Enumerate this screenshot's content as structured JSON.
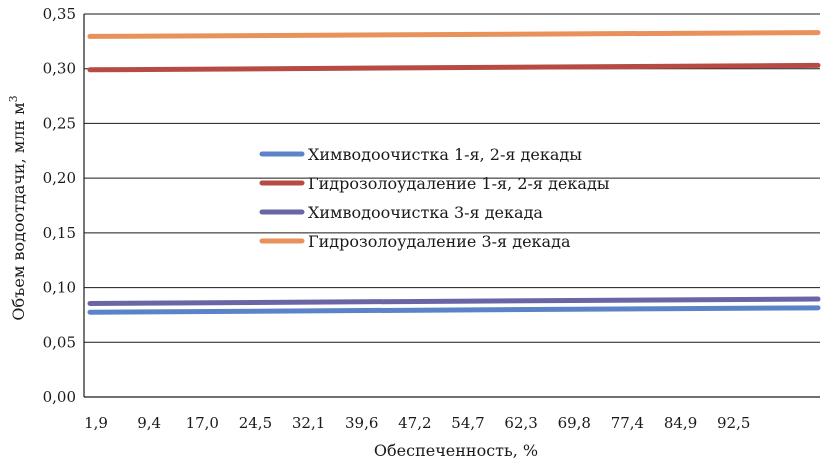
{
  "chart_data": {
    "type": "line",
    "xlabel": "Обеспеченность, %",
    "ylabel": "Объем водоотдачи, млн м",
    "ylabel_superscript": "3",
    "categories": [
      "1,9",
      "9,4",
      "17,0",
      "24,5",
      "32,1",
      "39,6",
      "47,2",
      "54,7",
      "62,3",
      "69,8",
      "77,4",
      "84,9",
      "92,5"
    ],
    "ylim": [
      0,
      0.35
    ],
    "yticks": [
      "0,00",
      "0,05",
      "0,10",
      "0,15",
      "0,20",
      "0,25",
      "0,30",
      "0,35"
    ],
    "grid": true,
    "legend_position": "center",
    "series": [
      {
        "name": "Химводоочистка 1-я, 2-я декады",
        "color": "#5b84c8",
        "y_start": 0.0775,
        "y_end": 0.0815
      },
      {
        "name": "Гидрозолоудаление 1-я, 2-я декады",
        "color": "#b84a44",
        "y_start": 0.299,
        "y_end": 0.303
      },
      {
        "name": "Химводоочистка 3-я декада",
        "color": "#6a66a6",
        "y_start": 0.0855,
        "y_end": 0.0895
      },
      {
        "name": "Гидрозолоудаление 3-я декада",
        "color": "#e8915a",
        "y_start": 0.3295,
        "y_end": 0.333
      }
    ]
  }
}
